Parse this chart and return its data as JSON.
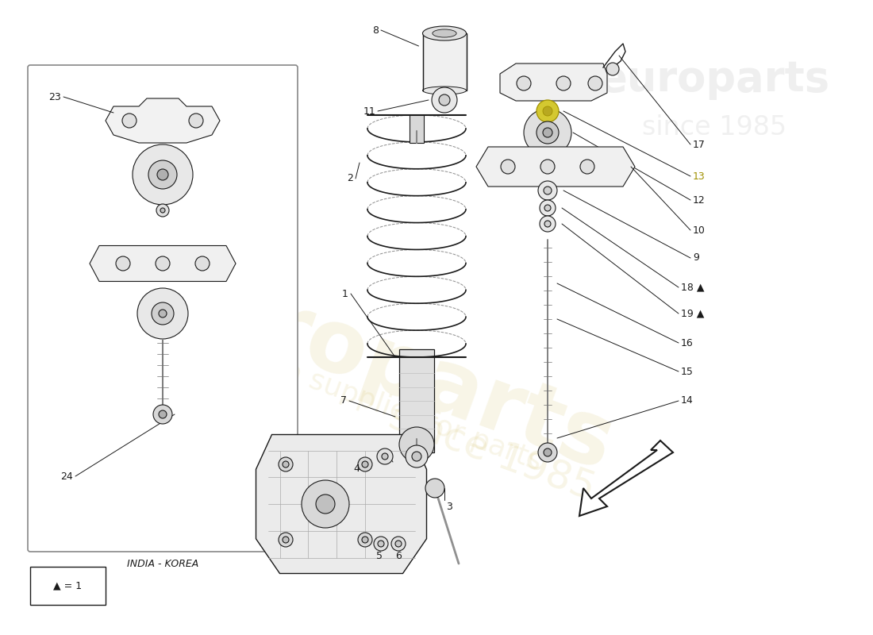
{
  "bg_color": "#ffffff",
  "line_color": "#1a1a1a",
  "watermark_color_gold": "#c8b040",
  "watermark_color_gray": "#cccccc",
  "india_korea_label": "INDIA - KOREA",
  "legend_label": "▲ = 1",
  "fig_w": 11.0,
  "fig_h": 8.0,
  "dpi": 100,
  "xlim": [
    0,
    1100
  ],
  "ylim": [
    0,
    800
  ]
}
